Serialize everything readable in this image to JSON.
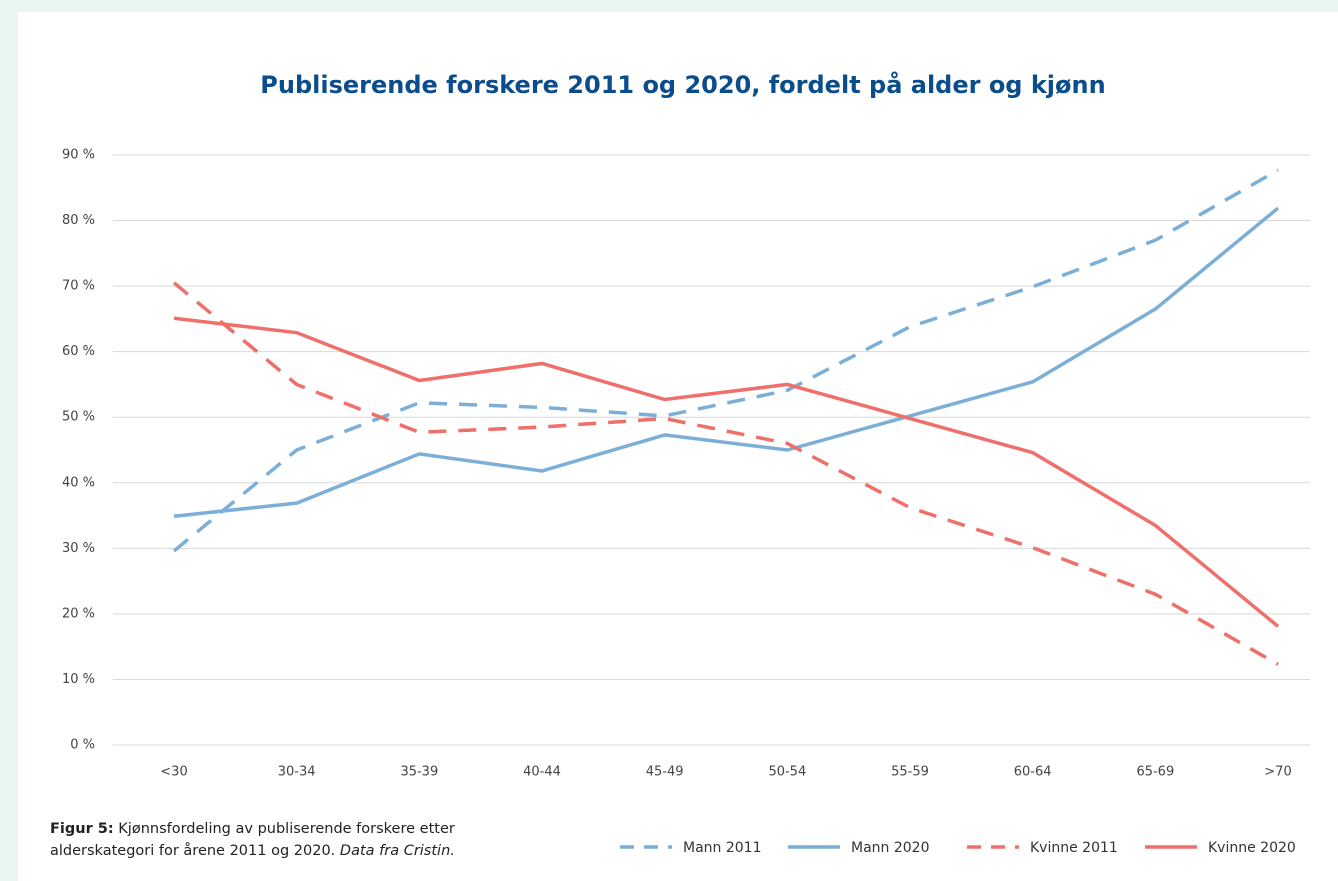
{
  "chart_data": {
    "type": "line",
    "title": "Publiserende forskere 2011 og 2020, fordelt på alder og kjønn",
    "categories": [
      "<30",
      "30-34",
      "35-39",
      "40-44",
      "45-49",
      "50-54",
      "55-59",
      "60-64",
      "65-69",
      ">70"
    ],
    "series": [
      {
        "name": "Mann 2011",
        "color": "#7bafd8",
        "dashed": true,
        "values": [
          29.6,
          45,
          52.2,
          51.5,
          50.2,
          54.1,
          63.8,
          69.9,
          77,
          87.7
        ]
      },
      {
        "name": "Mann 2020",
        "color": "#7bafd8",
        "dashed": false,
        "values": [
          34.9,
          36.9,
          44.4,
          41.8,
          47.3,
          45,
          50.2,
          55.4,
          66.5,
          81.9
        ]
      },
      {
        "name": "Kvinne 2011",
        "color": "#ef6f6a",
        "dashed": true,
        "values": [
          70.5,
          55,
          47.7,
          48.5,
          49.8,
          46,
          36.2,
          30.1,
          23,
          12.3
        ]
      },
      {
        "name": "Kvinne 2020",
        "color": "#ef6f6a",
        "dashed": false,
        "values": [
          65.1,
          62.9,
          55.6,
          58.2,
          52.7,
          55,
          49.8,
          44.6,
          33.5,
          18.1
        ]
      }
    ],
    "ylim": [
      0,
      90
    ],
    "yticks": [
      {
        "value": 0,
        "label": "0 %"
      },
      {
        "value": 10,
        "label": "10 %"
      },
      {
        "value": 20,
        "label": "20 %"
      },
      {
        "value": 30,
        "label": "30 %"
      },
      {
        "value": 40,
        "label": "40 %"
      },
      {
        "value": 50,
        "label": "50 %"
      },
      {
        "value": 60,
        "label": "60 %"
      },
      {
        "value": 70,
        "label": "70 %"
      },
      {
        "value": 80,
        "label": "80 %"
      },
      {
        "value": 90,
        "label": "90 %"
      }
    ],
    "grid": true,
    "legend": "bottom-right",
    "caption": {
      "label": "Figur 5:",
      "text": " Kjønnsfordeling av publiserende forskere etter alderskategori for årene 2011 og 2020. ",
      "source": "Data fra Cristin."
    }
  }
}
